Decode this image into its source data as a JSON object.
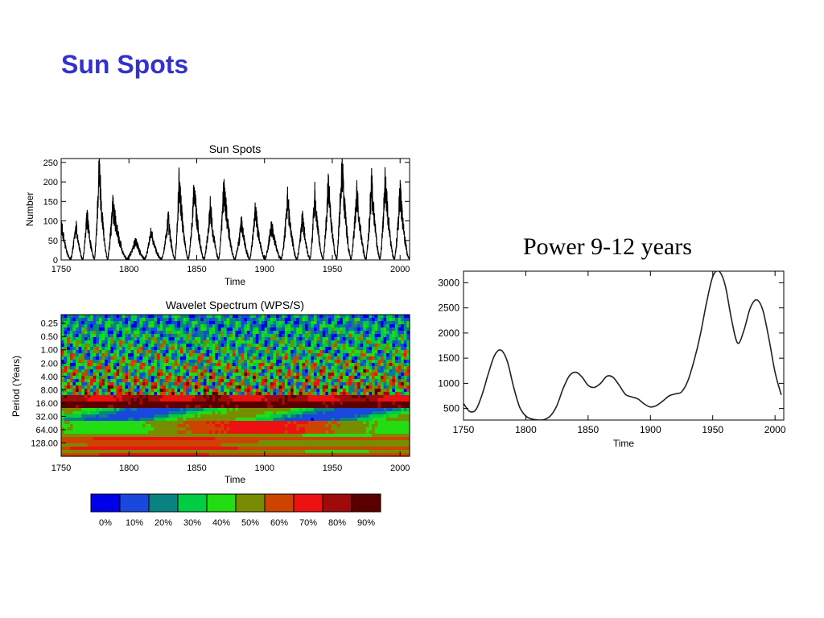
{
  "slide": {
    "title": "Sun Spots"
  },
  "power_heading": "Power 9-12 years",
  "chart_data": [
    {
      "type": "line",
      "title": "Sun Spots",
      "xlabel": "Time",
      "ylabel": "Number",
      "xlim": [
        1750,
        2007
      ],
      "ylim": [
        0,
        260
      ],
      "x_ticks": [
        1750,
        1800,
        1850,
        1900,
        1950,
        2000
      ],
      "y_ticks": [
        0,
        50,
        100,
        150,
        200,
        250
      ],
      "cycle_maxima": [
        {
          "year": 1750,
          "value": 90
        },
        {
          "year": 1761,
          "value": 86
        },
        {
          "year": 1769,
          "value": 115
        },
        {
          "year": 1778,
          "value": 238
        },
        {
          "year": 1788,
          "value": 140
        },
        {
          "year": 1805,
          "value": 50
        },
        {
          "year": 1816,
          "value": 70
        },
        {
          "year": 1829,
          "value": 105
        },
        {
          "year": 1837,
          "value": 205
        },
        {
          "year": 1848,
          "value": 180
        },
        {
          "year": 1860,
          "value": 135
        },
        {
          "year": 1870,
          "value": 190
        },
        {
          "year": 1883,
          "value": 95
        },
        {
          "year": 1893,
          "value": 130
        },
        {
          "year": 1905,
          "value": 90
        },
        {
          "year": 1917,
          "value": 155
        },
        {
          "year": 1928,
          "value": 110
        },
        {
          "year": 1937,
          "value": 165
        },
        {
          "year": 1947,
          "value": 200
        },
        {
          "year": 1957,
          "value": 253
        },
        {
          "year": 1968,
          "value": 175
        },
        {
          "year": 1979,
          "value": 200
        },
        {
          "year": 1989,
          "value": 200
        },
        {
          "year": 2000,
          "value": 175
        }
      ]
    },
    {
      "type": "heatmap",
      "title": "Wavelet Spectrum (WPS/S)",
      "xlabel": "Time",
      "ylabel": "Period (Years)",
      "xlim": [
        1750,
        2007
      ],
      "x_ticks": [
        1750,
        1800,
        1850,
        1900,
        1950,
        2000
      ],
      "y_scale": "log2",
      "y_ticks": [
        "0.25",
        "0.50",
        "1.00",
        "2.00",
        "4.00",
        "8.00",
        "16.00",
        "32.00",
        "64.00",
        "128.00"
      ],
      "ylim": [
        0.16,
        256
      ],
      "colorbar": {
        "labels": [
          "0%",
          "10%",
          "20%",
          "30%",
          "40%",
          "50%",
          "60%",
          "70%",
          "80%",
          "90%"
        ],
        "colors": [
          "#0000e8",
          "#1848dc",
          "#0a8282",
          "#00cc44",
          "#22dd11",
          "#788c00",
          "#cc4400",
          "#ee1111",
          "#a00a0a",
          "#5a0000"
        ]
      }
    },
    {
      "type": "line",
      "title": "",
      "xlabel": "Time",
      "ylabel": "",
      "xlim": [
        1750,
        2007
      ],
      "ylim": [
        270,
        3230
      ],
      "x_ticks": [
        1750,
        1800,
        1850,
        1900,
        1950,
        2000
      ],
      "y_ticks": [
        500,
        1000,
        1500,
        2000,
        2500,
        3000
      ],
      "x": [
        1750,
        1755,
        1760,
        1765,
        1770,
        1775,
        1780,
        1785,
        1790,
        1795,
        1800,
        1805,
        1810,
        1815,
        1820,
        1825,
        1830,
        1835,
        1840,
        1845,
        1850,
        1855,
        1860,
        1865,
        1870,
        1875,
        1880,
        1885,
        1890,
        1895,
        1900,
        1905,
        1910,
        1915,
        1920,
        1925,
        1930,
        1935,
        1940,
        1945,
        1950,
        1955,
        1960,
        1965,
        1970,
        1975,
        1980,
        1985,
        1990,
        1995,
        2000,
        2005
      ],
      "y": [
        600,
        440,
        480,
        780,
        1200,
        1560,
        1660,
        1450,
        950,
        530,
        350,
        290,
        270,
        280,
        360,
        560,
        900,
        1150,
        1220,
        1130,
        960,
        920,
        1000,
        1140,
        1120,
        960,
        780,
        730,
        690,
        590,
        530,
        560,
        650,
        750,
        790,
        830,
        1050,
        1450,
        1960,
        2600,
        3120,
        3230,
        2950,
        2280,
        1800,
        2050,
        2490,
        2660,
        2470,
        1900,
        1220,
        770
      ]
    }
  ]
}
